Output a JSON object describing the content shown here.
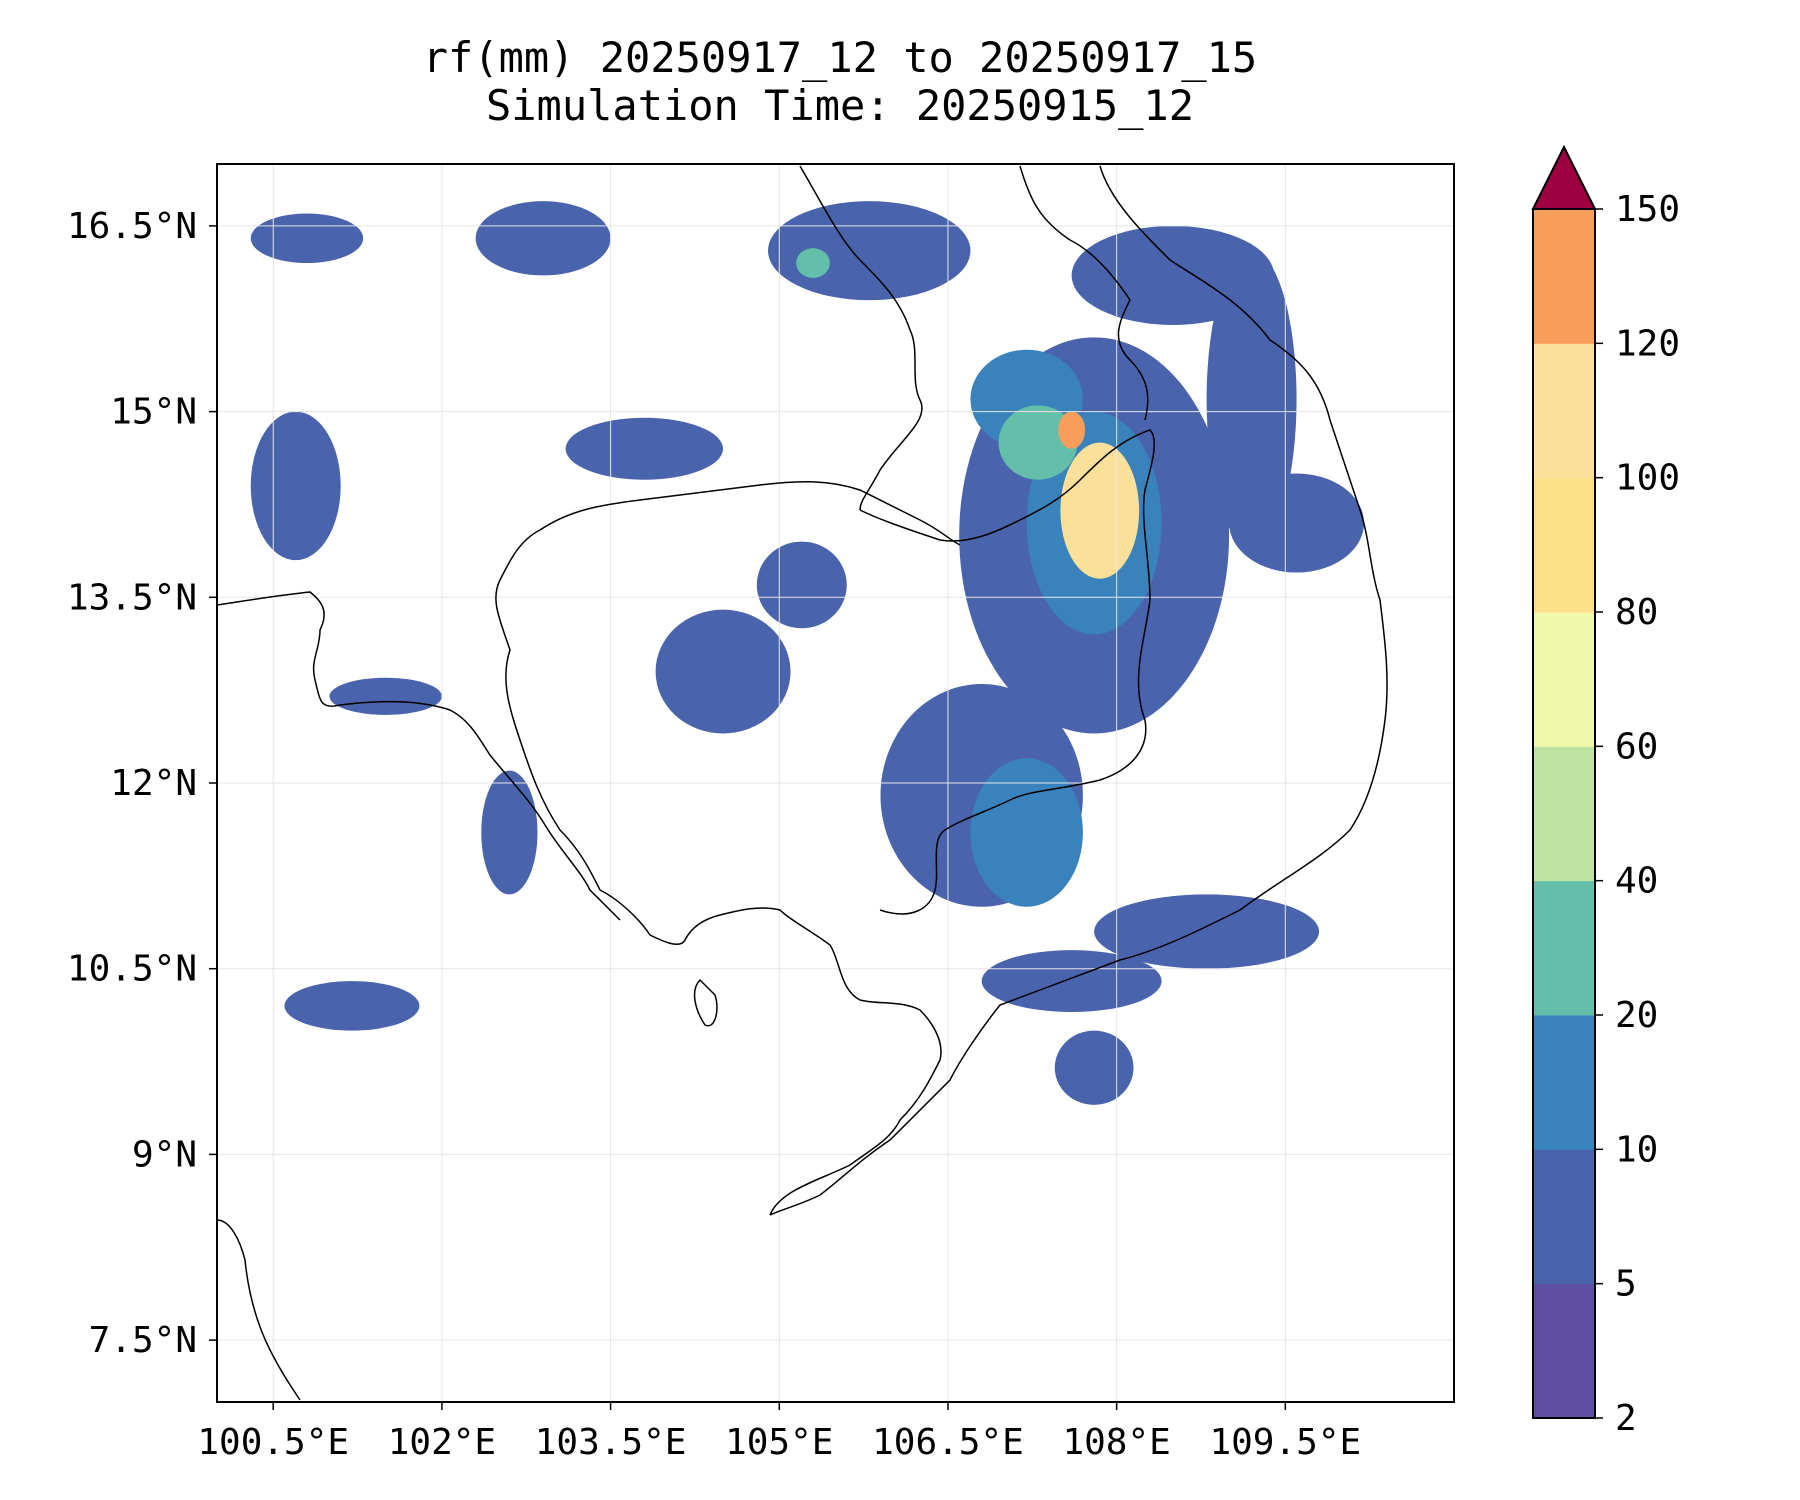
{
  "title": {
    "line1": "rf(mm) 20250917_12 to 20250917_15",
    "line2": "Simulation Time: 20250915_12"
  },
  "map": {
    "lon_range": [
      100.0,
      111.0
    ],
    "lat_range": [
      7.0,
      17.0
    ],
    "lon_ticks": [
      {
        "value": 100.5,
        "label": "100.5°E"
      },
      {
        "value": 102.0,
        "label": "102°E"
      },
      {
        "value": 103.5,
        "label": "103.5°E"
      },
      {
        "value": 105.0,
        "label": "105°E"
      },
      {
        "value": 106.5,
        "label": "106.5°E"
      },
      {
        "value": 108.0,
        "label": "108°E"
      },
      {
        "value": 109.5,
        "label": "109.5°E"
      }
    ],
    "lat_ticks": [
      {
        "value": 7.5,
        "label": "7.5°N"
      },
      {
        "value": 9.0,
        "label": "9°N"
      },
      {
        "value": 10.5,
        "label": "10.5°N"
      },
      {
        "value": 12.0,
        "label": "12°N"
      },
      {
        "value": 13.5,
        "label": "13.5°N"
      },
      {
        "value": 15.0,
        "label": "15°N"
      },
      {
        "value": 16.5,
        "label": "16.5°N"
      }
    ],
    "grid": true
  },
  "colorbar": {
    "levels": [
      "2",
      "5",
      "10",
      "20",
      "40",
      "60",
      "80",
      "100",
      "120",
      "150"
    ],
    "colors": [
      "#5e4fa2",
      "#4a63ad",
      "#3982bb",
      "#63bfa9",
      "#bde4a0",
      "#f0f8ab",
      "#fcdf89",
      "#fbe09a",
      "#f99d5a",
      "#d33f4d"
    ],
    "extend_color": "#9e0142",
    "extend": "max"
  },
  "rain_cells": [
    {
      "lon": 107.85,
      "lat": 14.2,
      "rx": 0.35,
      "ry": 0.55,
      "level": 7
    },
    {
      "lon": 107.6,
      "lat": 14.85,
      "rx": 0.12,
      "ry": 0.15,
      "level": 8
    },
    {
      "lon": 107.3,
      "lat": 14.75,
      "rx": 0.35,
      "ry": 0.3,
      "level": 3
    },
    {
      "lon": 107.8,
      "lat": 14.1,
      "rx": 0.6,
      "ry": 0.9,
      "level": 2
    },
    {
      "lon": 107.8,
      "lat": 14.0,
      "rx": 1.2,
      "ry": 1.6,
      "level": 1
    },
    {
      "lon": 107.2,
      "lat": 15.1,
      "rx": 0.5,
      "ry": 0.4,
      "level": 2
    },
    {
      "lon": 105.8,
      "lat": 16.3,
      "rx": 0.9,
      "ry": 0.4,
      "level": 1
    },
    {
      "lon": 105.3,
      "lat": 16.2,
      "rx": 0.15,
      "ry": 0.12,
      "level": 3
    },
    {
      "lon": 108.5,
      "lat": 16.1,
      "rx": 0.9,
      "ry": 0.4,
      "level": 1
    },
    {
      "lon": 109.2,
      "lat": 15.1,
      "rx": 0.4,
      "ry": 1.2,
      "level": 1
    },
    {
      "lon": 109.6,
      "lat": 14.1,
      "rx": 0.6,
      "ry": 0.4,
      "level": 1
    },
    {
      "lon": 107.2,
      "lat": 11.6,
      "rx": 0.5,
      "ry": 0.6,
      "level": 2
    },
    {
      "lon": 106.8,
      "lat": 11.9,
      "rx": 0.9,
      "ry": 0.9,
      "level": 1
    },
    {
      "lon": 108.8,
      "lat": 10.8,
      "rx": 1.0,
      "ry": 0.3,
      "level": 1
    },
    {
      "lon": 107.6,
      "lat": 10.4,
      "rx": 0.8,
      "ry": 0.25,
      "level": 1
    },
    {
      "lon": 107.8,
      "lat": 9.7,
      "rx": 0.35,
      "ry": 0.3,
      "level": 1
    },
    {
      "lon": 101.2,
      "lat": 10.2,
      "rx": 0.6,
      "ry": 0.2,
      "level": 1
    },
    {
      "lon": 101.5,
      "lat": 12.7,
      "rx": 0.5,
      "ry": 0.15,
      "level": 1
    },
    {
      "lon": 100.7,
      "lat": 14.4,
      "rx": 0.4,
      "ry": 0.6,
      "level": 1
    },
    {
      "lon": 103.8,
      "lat": 14.7,
      "rx": 0.7,
      "ry": 0.25,
      "level": 1
    },
    {
      "lon": 104.5,
      "lat": 12.9,
      "rx": 0.6,
      "ry": 0.5,
      "level": 1
    },
    {
      "lon": 105.2,
      "lat": 13.6,
      "rx": 0.4,
      "ry": 0.35,
      "level": 1
    },
    {
      "lon": 102.6,
      "lat": 11.6,
      "rx": 0.25,
      "ry": 0.5,
      "level": 1
    },
    {
      "lon": 102.9,
      "lat": 16.4,
      "rx": 0.6,
      "ry": 0.3,
      "level": 1
    },
    {
      "lon": 100.8,
      "lat": 16.4,
      "rx": 0.5,
      "ry": 0.2,
      "level": 1
    }
  ]
}
